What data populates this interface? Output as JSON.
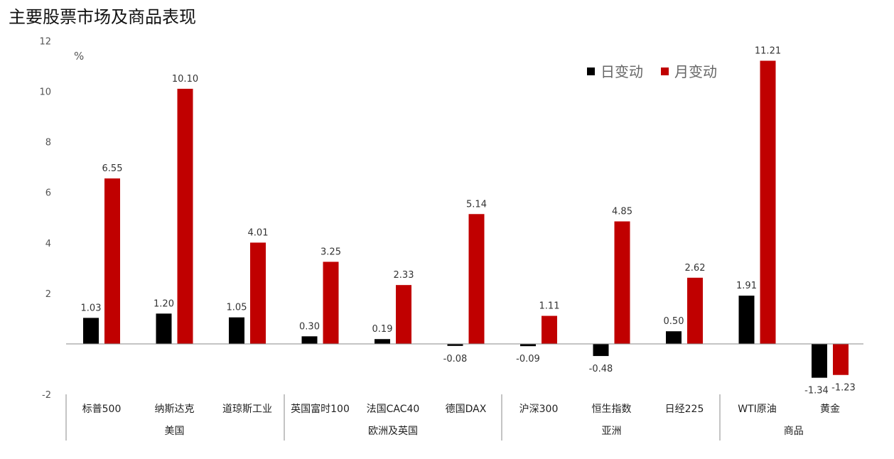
{
  "title": "主要股票市场及商品表现",
  "chart_data": {
    "type": "bar",
    "title": "主要股票市场及商品表现",
    "ylabel": "%",
    "xlabel": "",
    "ylim": [
      -2,
      12
    ],
    "yticks": [
      -2,
      2,
      4,
      6,
      8,
      10,
      12
    ],
    "grid": false,
    "legend_position": "top-right",
    "categories": [
      "标普500",
      "纳斯达克",
      "道琼斯工业",
      "英国富时100",
      "法国CAC40",
      "德国DAX",
      "沪深300",
      "恒生指数",
      "日经225",
      "WTI原油",
      "黄金"
    ],
    "groups": [
      {
        "label": "美国",
        "start": 0,
        "end": 2
      },
      {
        "label": "欧洲及英国",
        "start": 3,
        "end": 5
      },
      {
        "label": "亚洲",
        "start": 6,
        "end": 8
      },
      {
        "label": "商品",
        "start": 9,
        "end": 10
      }
    ],
    "series": [
      {
        "name": "日变动",
        "color": "#000000",
        "values": [
          1.03,
          1.2,
          1.05,
          0.3,
          0.19,
          -0.08,
          -0.09,
          -0.48,
          0.5,
          1.91,
          -1.34
        ],
        "labels": [
          "1.03",
          "1.20",
          "1.05",
          "0.30",
          "0.19",
          "-0.08",
          "-0.09",
          "-0.48",
          "0.50",
          "1.91",
          "-1.34"
        ]
      },
      {
        "name": "月变动",
        "color": "#c00000",
        "values": [
          6.55,
          10.1,
          4.01,
          3.25,
          2.33,
          5.14,
          1.11,
          4.85,
          2.62,
          11.21,
          -1.23
        ],
        "labels": [
          "6.55",
          "10.10",
          "4.01",
          "3.25",
          "2.33",
          "5.14",
          "1.11",
          "4.85",
          "2.62",
          "11.21",
          "-1.23"
        ]
      }
    ]
  }
}
